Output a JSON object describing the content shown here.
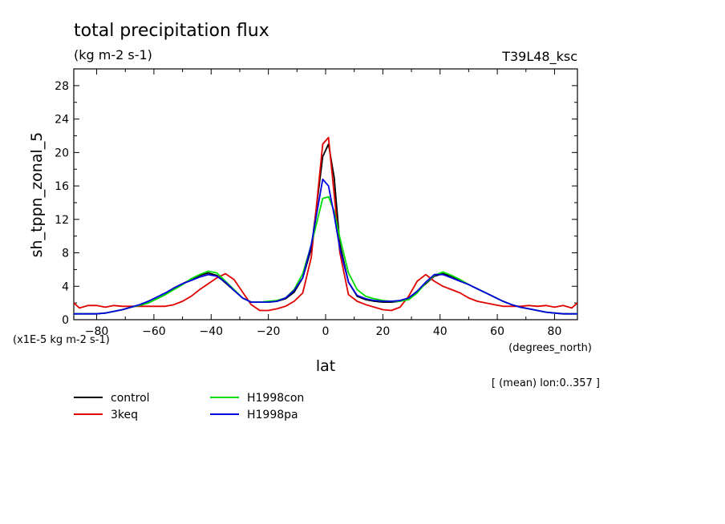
{
  "chart_data": {
    "type": "line",
    "title": "total precipitation flux",
    "units": "(kg m-2 s-1)",
    "run_label": "T39L48_ksc",
    "ylabel": "sh_tppn_zonal_5",
    "scale_note": "(x1E-5 kg m-2 s-1)",
    "xlabel": "lat",
    "xunits": "(degrees_north)",
    "mean_note": "[ (mean) lon:0..357 ]",
    "xlim": [
      -88,
      88
    ],
    "ylim": [
      0,
      30
    ],
    "xticks": [
      -80,
      -60,
      -40,
      -20,
      0,
      20,
      40,
      60,
      80
    ],
    "xtick_labels": [
      "−80",
      "−60",
      "−40",
      "−20",
      "0",
      "20",
      "40",
      "60",
      "80"
    ],
    "yticks": [
      0,
      4,
      8,
      12,
      16,
      20,
      24,
      28
    ],
    "ytick_labels": [
      "0",
      "4",
      "8",
      "12",
      "16",
      "20",
      "24",
      "28"
    ],
    "series": [
      {
        "name": "control",
        "color": "#000000",
        "x": [
          -88,
          -86,
          -83,
          -80,
          -77,
          -74,
          -71,
          -68,
          -65,
          -62,
          -59,
          -56,
          -53,
          -50,
          -47,
          -44,
          -41,
          -38,
          -35,
          -32,
          -29,
          -26,
          -23,
          -20,
          -17,
          -14,
          -11,
          -8,
          -5,
          -1,
          1,
          3,
          5,
          8,
          11,
          14,
          17,
          20,
          23,
          26,
          29,
          32,
          35,
          38,
          41,
          44,
          47,
          50,
          53,
          56,
          59,
          62,
          65,
          68,
          71,
          74,
          77,
          80,
          83,
          86,
          88
        ],
        "y": [
          0.7,
          0.7,
          0.7,
          0.7,
          0.8,
          1.0,
          1.2,
          1.5,
          1.7,
          2.0,
          2.5,
          3.0,
          3.8,
          4.3,
          4.8,
          5.3,
          5.6,
          5.3,
          4.4,
          3.5,
          2.6,
          2.1,
          2.1,
          2.1,
          2.2,
          2.5,
          3.3,
          5.0,
          8.5,
          19.5,
          21.0,
          17.0,
          9.0,
          4.5,
          2.8,
          2.4,
          2.2,
          2.1,
          2.1,
          2.2,
          2.6,
          3.4,
          4.3,
          5.2,
          5.5,
          5.2,
          4.7,
          4.2,
          3.7,
          3.2,
          2.7,
          2.2,
          1.8,
          1.5,
          1.3,
          1.1,
          0.9,
          0.8,
          0.7,
          0.7,
          0.7
        ]
      },
      {
        "name": "3keq",
        "color": "#e00000",
        "x": [
          -88,
          -86,
          -83,
          -80,
          -77,
          -74,
          -71,
          -68,
          -65,
          -62,
          -59,
          -56,
          -53,
          -50,
          -47,
          -44,
          -41,
          -38,
          -35,
          -32,
          -29,
          -26,
          -23,
          -20,
          -17,
          -14,
          -11,
          -8,
          -5,
          -1,
          1,
          3,
          5,
          8,
          11,
          14,
          17,
          20,
          23,
          26,
          29,
          32,
          35,
          38,
          41,
          44,
          47,
          50,
          53,
          56,
          59,
          62,
          65,
          68,
          71,
          74,
          77,
          80,
          83,
          86,
          88
        ],
        "y": [
          2.0,
          1.4,
          1.7,
          1.7,
          1.5,
          1.7,
          1.6,
          1.6,
          1.6,
          1.6,
          1.6,
          1.6,
          1.8,
          2.2,
          2.8,
          3.6,
          4.3,
          5.0,
          5.5,
          4.8,
          3.3,
          1.8,
          1.1,
          1.1,
          1.3,
          1.6,
          2.2,
          3.2,
          7.5,
          21.0,
          21.8,
          15.0,
          8.0,
          3.0,
          2.2,
          1.8,
          1.5,
          1.2,
          1.1,
          1.5,
          2.8,
          4.6,
          5.4,
          4.6,
          4.0,
          3.6,
          3.2,
          2.6,
          2.2,
          2.0,
          1.8,
          1.6,
          1.6,
          1.6,
          1.7,
          1.6,
          1.7,
          1.5,
          1.7,
          1.4,
          2.0
        ]
      },
      {
        "name": "H1998con",
        "color": "#00dd00",
        "x": [
          -88,
          -86,
          -83,
          -80,
          -77,
          -74,
          -71,
          -68,
          -65,
          -62,
          -59,
          -56,
          -53,
          -50,
          -47,
          -44,
          -41,
          -38,
          -35,
          -32,
          -29,
          -26,
          -23,
          -20,
          -17,
          -14,
          -11,
          -8,
          -5,
          -1,
          1,
          3,
          5,
          8,
          11,
          14,
          17,
          20,
          23,
          26,
          29,
          32,
          35,
          38,
          41,
          44,
          47,
          50,
          53,
          56,
          59,
          62,
          65,
          68,
          71,
          74,
          77,
          80,
          83,
          86,
          88
        ],
        "y": [
          0.7,
          0.7,
          0.7,
          0.7,
          0.8,
          1.0,
          1.2,
          1.5,
          1.7,
          2.0,
          2.5,
          3.0,
          3.6,
          4.2,
          4.9,
          5.4,
          5.8,
          5.6,
          4.6,
          3.6,
          2.6,
          2.1,
          2.1,
          2.2,
          2.3,
          2.6,
          3.6,
          5.5,
          9.0,
          14.5,
          14.7,
          13.0,
          9.8,
          5.6,
          3.6,
          2.8,
          2.5,
          2.3,
          2.2,
          2.2,
          2.4,
          3.2,
          4.4,
          5.3,
          5.7,
          5.3,
          4.8,
          4.2,
          3.7,
          3.2,
          2.7,
          2.2,
          1.8,
          1.5,
          1.3,
          1.1,
          0.9,
          0.8,
          0.7,
          0.7,
          0.7
        ]
      },
      {
        "name": "H1998pa",
        "color": "#0000e0",
        "x": [
          -88,
          -86,
          -83,
          -80,
          -77,
          -74,
          -71,
          -68,
          -65,
          -62,
          -59,
          -56,
          -53,
          -50,
          -47,
          -44,
          -41,
          -38,
          -35,
          -32,
          -29,
          -26,
          -23,
          -20,
          -17,
          -14,
          -11,
          -8,
          -5,
          -1,
          1,
          3,
          5,
          8,
          11,
          14,
          17,
          20,
          23,
          26,
          29,
          32,
          35,
          38,
          41,
          44,
          47,
          50,
          53,
          56,
          59,
          62,
          65,
          68,
          71,
          74,
          77,
          80,
          83,
          86,
          88
        ],
        "y": [
          0.7,
          0.7,
          0.7,
          0.7,
          0.8,
          1.0,
          1.2,
          1.5,
          1.8,
          2.2,
          2.7,
          3.2,
          3.8,
          4.3,
          4.7,
          5.1,
          5.4,
          5.2,
          4.5,
          3.5,
          2.6,
          2.1,
          2.1,
          2.1,
          2.2,
          2.6,
          3.5,
          5.0,
          9.0,
          16.8,
          16.0,
          12.5,
          8.5,
          4.5,
          2.9,
          2.5,
          2.3,
          2.2,
          2.2,
          2.3,
          2.6,
          3.4,
          4.5,
          5.4,
          5.4,
          5.0,
          4.6,
          4.2,
          3.7,
          3.2,
          2.7,
          2.2,
          1.8,
          1.5,
          1.3,
          1.1,
          0.9,
          0.8,
          0.7,
          0.7,
          0.7
        ]
      }
    ],
    "legend": [
      "control",
      "3keq",
      "H1998con",
      "H1998pa"
    ]
  }
}
